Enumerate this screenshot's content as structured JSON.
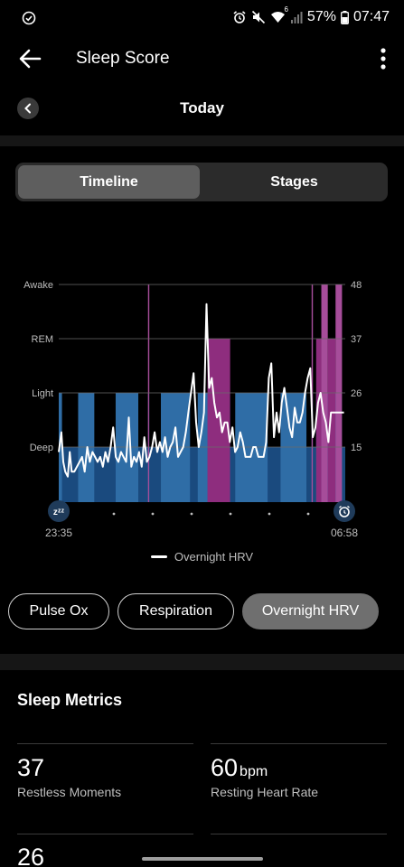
{
  "status_bar": {
    "battery": "57%",
    "time": "07:47",
    "network": "6"
  },
  "header": {
    "title": "Sleep Score",
    "back_icon": "arrow-left-icon",
    "menu_icon": "more-vert-icon"
  },
  "date_nav": {
    "label": "Today"
  },
  "view_tabs": {
    "active": "Timeline",
    "inactive": "Stages"
  },
  "chart_data": {
    "type": "line",
    "title": "",
    "stage_labels": [
      "Awake",
      "REM",
      "Light",
      "Deep"
    ],
    "right_axis_ticks": [
      48,
      37,
      26,
      15
    ],
    "right_axis_range": [
      4,
      48
    ],
    "x_range": [
      0,
      442
    ],
    "start_time": "23:35",
    "end_time": "06:58",
    "legend": "Overnight HRV",
    "colors": {
      "light": "#2f6da6",
      "deep": "#1a4a7e",
      "rem": "#8e2d7e",
      "awake": "#a64d9a",
      "hrv_line": "#ffffff"
    },
    "hypnogram_stages": [
      "Light",
      "Deep",
      "Light",
      "Deep",
      "Light",
      "Deep",
      "Awake",
      "Deep",
      "Light",
      "Deep",
      "Light",
      "REM",
      "Deep",
      "Light",
      "Deep",
      "Light",
      "Deep",
      "Awake",
      "Deep",
      "REM",
      "Awake",
      "REM",
      "Awake",
      "Deep"
    ],
    "hypnogram_durations": [
      5,
      25,
      25,
      33,
      35,
      15,
      2,
      18,
      45,
      12,
      15,
      35,
      8,
      50,
      20,
      40,
      8,
      2,
      5,
      8,
      10,
      12,
      10,
      5
    ],
    "hrv_x": [
      0,
      4,
      7,
      10,
      14,
      17,
      20,
      24,
      28,
      32,
      36,
      40,
      44,
      48,
      52,
      56,
      60,
      64,
      68,
      72,
      76,
      80,
      84,
      88,
      92,
      96,
      100,
      104,
      108,
      112,
      116,
      120,
      124,
      128,
      132,
      136,
      140,
      144,
      148,
      152,
      156,
      160,
      164,
      168,
      172,
      176,
      180,
      184,
      188,
      192,
      196,
      200,
      204,
      208,
      212,
      216,
      220,
      224,
      228,
      232,
      236,
      240,
      244,
      248,
      252,
      256,
      260,
      264,
      268,
      272,
      276,
      280,
      284,
      288,
      292,
      296,
      300,
      304,
      308,
      312,
      316,
      320,
      324,
      328,
      332,
      336,
      340,
      344,
      348,
      352,
      356,
      360,
      364,
      368,
      372,
      376,
      380,
      384,
      388,
      392,
      396,
      400,
      404,
      408,
      412,
      416,
      420,
      424,
      428,
      432,
      436,
      440
    ],
    "hrv_y": [
      14,
      18,
      12,
      10,
      9,
      14,
      10,
      10,
      11,
      12,
      13,
      10,
      15,
      12,
      14,
      13,
      12,
      13,
      11,
      14,
      12,
      15,
      19,
      13,
      12,
      14,
      13,
      12,
      21,
      11,
      13,
      12,
      14,
      11,
      17,
      12,
      13,
      15,
      18,
      14,
      16,
      14,
      17,
      13,
      15,
      16,
      19,
      13,
      14,
      15,
      18,
      22,
      26,
      30,
      20,
      15,
      18,
      22,
      44,
      27,
      29,
      24,
      21,
      22,
      18,
      20,
      20,
      16,
      19,
      14,
      15,
      18,
      16,
      13,
      13,
      13,
      15,
      15,
      13,
      13,
      13,
      16,
      29,
      32,
      17,
      22,
      18,
      24,
      27,
      23,
      19,
      17,
      23,
      20,
      20,
      22,
      26,
      29,
      31,
      17,
      19,
      24,
      26,
      22,
      20,
      16,
      22,
      22,
      22,
      22,
      22,
      22
    ]
  },
  "metric_pills": [
    {
      "label": "Pulse Ox",
      "active": false
    },
    {
      "label": "Respiration",
      "active": false
    },
    {
      "label": "Overnight HRV",
      "active": true
    }
  ],
  "sleep_metrics": {
    "title": "Sleep Metrics",
    "items": [
      {
        "value": "37",
        "unit": "",
        "label": "Restless Moments"
      },
      {
        "value": "60",
        "unit": "bpm",
        "label": "Resting Heart Rate"
      }
    ],
    "cut_off_value": "26"
  }
}
